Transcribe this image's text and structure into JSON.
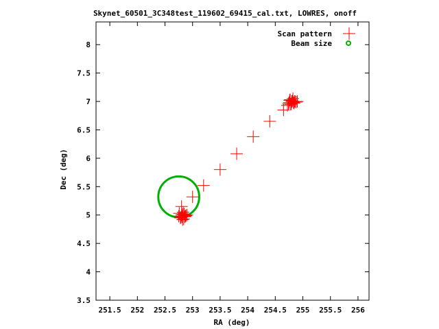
{
  "chart_data": {
    "type": "scatter",
    "title": "Skynet_60501_3C348test_119602_69415_cal.txt, LOWRES, onoff",
    "xlabel": "RA (deg)",
    "ylabel": "Dec (deg)",
    "xlim": [
      251.25,
      256.2
    ],
    "ylim": [
      3.5,
      8.4
    ],
    "xticks": [
      251.5,
      252,
      252.5,
      253,
      253.5,
      254,
      254.5,
      255,
      255.5,
      256
    ],
    "yticks": [
      3.5,
      4,
      4.5,
      5,
      5.5,
      6,
      6.5,
      7,
      7.5,
      8
    ],
    "grid": false,
    "legend_position": "top-right",
    "colors": {
      "scan": "#ff0000",
      "beam": "#00b000"
    },
    "series": [
      {
        "name": "Scan pattern",
        "marker": "plus",
        "x": [
          252.75,
          252.78,
          252.8,
          252.82,
          252.85,
          252.86,
          252.88,
          252.9,
          252.76,
          252.79,
          252.83,
          252.87,
          252.84,
          252.82,
          252.81,
          252.8,
          253.0,
          253.2,
          253.5,
          253.8,
          254.1,
          254.4,
          254.65,
          254.72,
          254.75,
          254.76,
          254.78,
          254.8,
          254.82,
          254.84,
          254.86,
          254.88,
          254.77,
          254.79,
          254.81,
          254.83,
          254.85,
          254.74,
          254.9
        ],
        "y": [
          4.98,
          4.95,
          5.0,
          4.92,
          5.02,
          4.97,
          4.99,
          5.0,
          5.03,
          4.96,
          5.05,
          4.98,
          4.93,
          5.01,
          4.97,
          5.15,
          5.32,
          5.52,
          5.8,
          6.08,
          6.38,
          6.65,
          6.85,
          6.93,
          6.98,
          7.02,
          6.95,
          7.0,
          7.05,
          6.97,
          7.0,
          6.99,
          7.03,
          6.96,
          7.01,
          6.98,
          7.0,
          6.96,
          7.0
        ]
      },
      {
        "name": "Beam size",
        "marker": "circle",
        "center": [
          252.75,
          5.32
        ],
        "radius_deg": 0.36
      }
    ]
  }
}
